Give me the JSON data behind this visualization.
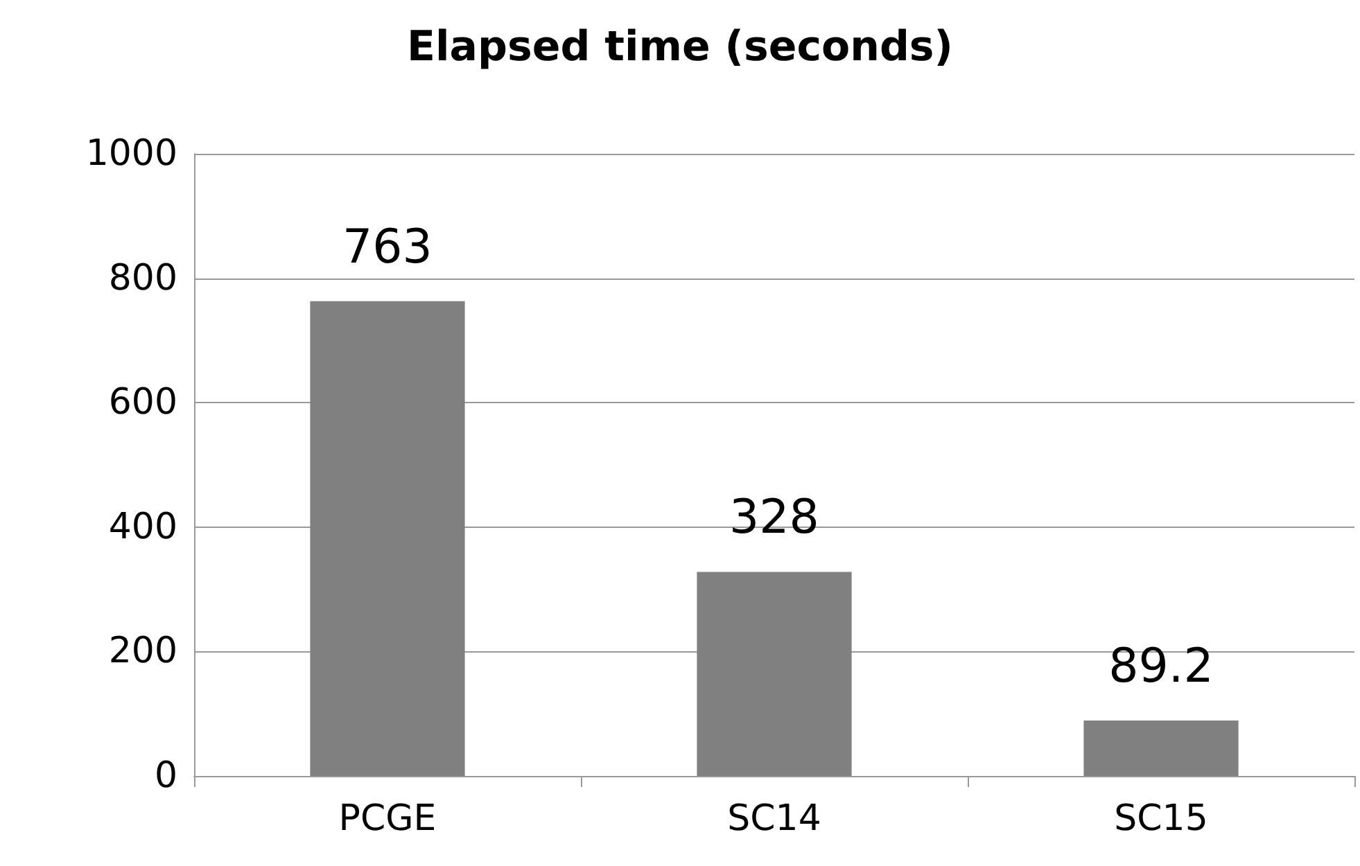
{
  "chart_data": {
    "type": "bar",
    "title": "Elapsed time (seconds)",
    "categories": [
      "PCGE",
      "SC14",
      "SC15"
    ],
    "values": [
      763,
      328,
      89.2
    ],
    "color": "#808080",
    "ylim": [
      0,
      1000
    ],
    "yticks": [
      0,
      200,
      400,
      600,
      800,
      1000
    ],
    "grid": "y",
    "data_labels": true
  }
}
